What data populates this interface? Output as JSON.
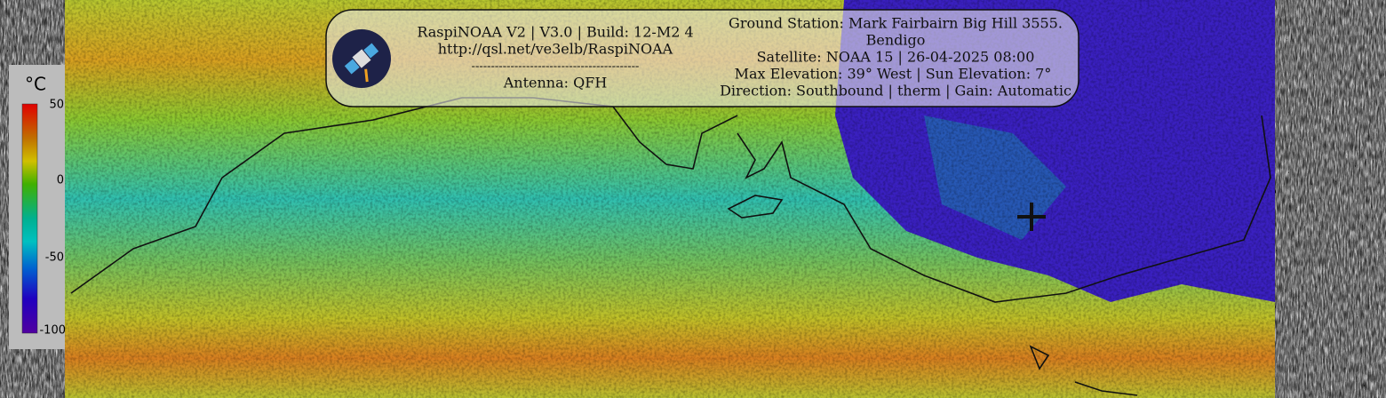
{
  "header": {
    "left": [
      "RaspiNOAA V2 | V3.0 | Build: 12-M2 4",
      "http://qsl.net/ve3elb/RaspiNOAA",
      "-------------------------------------------",
      "Antenna: QFH"
    ],
    "right": [
      "Ground Station: Mark Fairbairn Big Hill 3555.",
      "Bendigo",
      "Satellite: NOAA 15 | 26-04-2025 08:00",
      "Max Elevation: 39° West | Sun Elevation: 7°",
      "Direction: Southbound | therm | Gain: Automatic"
    ]
  },
  "legend": {
    "unit": "°C",
    "labels": [
      "50",
      "0",
      "-50",
      "-100"
    ]
  }
}
